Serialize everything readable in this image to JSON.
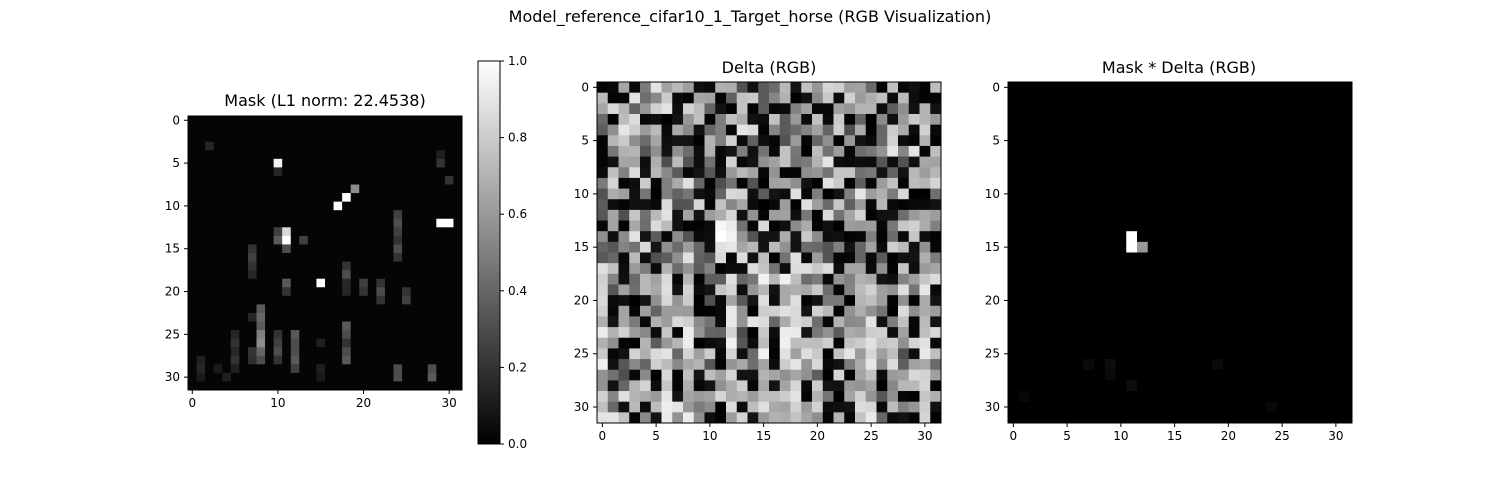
{
  "figure": {
    "title": "Model_reference_cifar10_1_Target_horse (RGB Visualization)"
  },
  "chart_data": [
    {
      "type": "heatmap",
      "title": "Mask (L1 norm: 22.4538)",
      "xlabel": "",
      "ylabel": "",
      "grid_size": 32,
      "colormap": "gray",
      "vrange": [
        0,
        1
      ],
      "xticks": [
        0,
        10,
        20,
        30
      ],
      "yticks": [
        0,
        5,
        10,
        15,
        20,
        25,
        30
      ],
      "background": 0.02,
      "cells": [
        [
          5,
          10,
          0.95
        ],
        [
          9,
          18,
          1.0
        ],
        [
          10,
          17,
          1.0
        ],
        [
          8,
          19,
          0.55
        ],
        [
          12,
          29,
          1.0
        ],
        [
          12,
          30,
          1.0
        ],
        [
          13,
          11,
          0.85
        ],
        [
          14,
          11,
          1.0
        ],
        [
          14,
          10,
          0.35
        ],
        [
          13,
          10,
          0.25
        ],
        [
          19,
          15,
          1.0
        ],
        [
          19,
          11,
          0.35
        ],
        [
          15,
          11,
          0.3
        ],
        [
          14,
          13,
          0.25
        ],
        [
          20,
          11,
          0.2
        ],
        [
          3,
          2,
          0.15
        ],
        [
          6,
          10,
          0.15
        ],
        [
          5,
          29,
          0.2
        ],
        [
          7,
          30,
          0.2
        ],
        [
          4,
          29,
          0.12
        ],
        [
          11,
          24,
          0.25
        ],
        [
          12,
          24,
          0.3
        ],
        [
          13,
          24,
          0.25
        ],
        [
          14,
          24,
          0.2
        ],
        [
          15,
          24,
          0.3
        ],
        [
          16,
          24,
          0.2
        ],
        [
          15,
          7,
          0.2
        ],
        [
          16,
          7,
          0.25
        ],
        [
          17,
          7,
          0.2
        ],
        [
          18,
          7,
          0.15
        ],
        [
          18,
          18,
          0.3
        ],
        [
          17,
          18,
          0.2
        ],
        [
          19,
          18,
          0.15
        ],
        [
          19,
          20,
          0.25
        ],
        [
          20,
          20,
          0.2
        ],
        [
          19,
          22,
          0.2
        ],
        [
          20,
          22,
          0.3
        ],
        [
          21,
          22,
          0.2
        ],
        [
          20,
          25,
          0.2
        ],
        [
          21,
          25,
          0.25
        ],
        [
          20,
          18,
          0.15
        ],
        [
          22,
          8,
          0.35
        ],
        [
          23,
          8,
          0.4
        ],
        [
          24,
          8,
          0.35
        ],
        [
          25,
          8,
          0.5
        ],
        [
          26,
          8,
          0.55
        ],
        [
          27,
          8,
          0.4
        ],
        [
          28,
          8,
          0.3
        ],
        [
          25,
          10,
          0.2
        ],
        [
          26,
          10,
          0.25
        ],
        [
          27,
          10,
          0.3
        ],
        [
          28,
          10,
          0.2
        ],
        [
          25,
          12,
          0.35
        ],
        [
          26,
          12,
          0.3
        ],
        [
          27,
          12,
          0.3
        ],
        [
          28,
          12,
          0.35
        ],
        [
          29,
          12,
          0.25
        ],
        [
          24,
          18,
          0.35
        ],
        [
          25,
          18,
          0.3
        ],
        [
          26,
          18,
          0.2
        ],
        [
          27,
          18,
          0.3
        ],
        [
          28,
          18,
          0.35
        ],
        [
          25,
          5,
          0.15
        ],
        [
          26,
          5,
          0.2
        ],
        [
          27,
          5,
          0.15
        ],
        [
          28,
          5,
          0.2
        ],
        [
          29,
          5,
          0.12
        ],
        [
          23,
          7,
          0.15
        ],
        [
          27,
          7,
          0.2
        ],
        [
          28,
          7,
          0.18
        ],
        [
          29,
          24,
          0.3
        ],
        [
          30,
          24,
          0.3
        ],
        [
          29,
          28,
          0.3
        ],
        [
          30,
          28,
          0.35
        ],
        [
          28,
          1,
          0.12
        ],
        [
          29,
          1,
          0.15
        ],
        [
          30,
          1,
          0.1
        ],
        [
          30,
          4,
          0.12
        ],
        [
          29,
          3,
          0.1
        ],
        [
          29,
          15,
          0.12
        ],
        [
          30,
          15,
          0.1
        ],
        [
          26,
          15,
          0.12
        ]
      ]
    },
    {
      "type": "heatmap",
      "title": "Delta (RGB)",
      "xlabel": "",
      "ylabel": "",
      "grid_size": 32,
      "colormap": "gray",
      "xticks": [
        0,
        5,
        10,
        15,
        20,
        25,
        30
      ],
      "yticks": [
        0,
        5,
        10,
        15,
        20,
        25,
        30
      ],
      "pattern": "random",
      "seed": 1337,
      "bright_cells": [
        [
          13,
          11,
          0.97
        ],
        [
          14,
          11,
          1.0
        ],
        [
          14,
          12,
          0.95
        ],
        [
          15,
          12,
          0.9
        ],
        [
          13,
          12,
          0.92
        ],
        [
          15,
          11,
          0.88
        ]
      ]
    },
    {
      "type": "heatmap",
      "title": "Mask * Delta (RGB)",
      "xlabel": "",
      "ylabel": "",
      "grid_size": 32,
      "colormap": "gray",
      "xticks": [
        0,
        5,
        10,
        15,
        20,
        25,
        30
      ],
      "yticks": [
        0,
        5,
        10,
        15,
        20,
        25,
        30
      ],
      "background": 0.0,
      "cells": [
        [
          14,
          11,
          1.0
        ],
        [
          15,
          11,
          1.0
        ],
        [
          15,
          12,
          0.6
        ],
        [
          26,
          7,
          0.04
        ],
        [
          26,
          9,
          0.05
        ],
        [
          27,
          9,
          0.04
        ],
        [
          28,
          11,
          0.05
        ],
        [
          26,
          19,
          0.04
        ],
        [
          29,
          1,
          0.03
        ],
        [
          30,
          24,
          0.03
        ]
      ]
    }
  ],
  "colorbar": {
    "range": [
      0,
      1
    ],
    "ticks": [
      "0.0",
      "0.2",
      "0.4",
      "0.6",
      "0.8",
      "1.0"
    ]
  }
}
